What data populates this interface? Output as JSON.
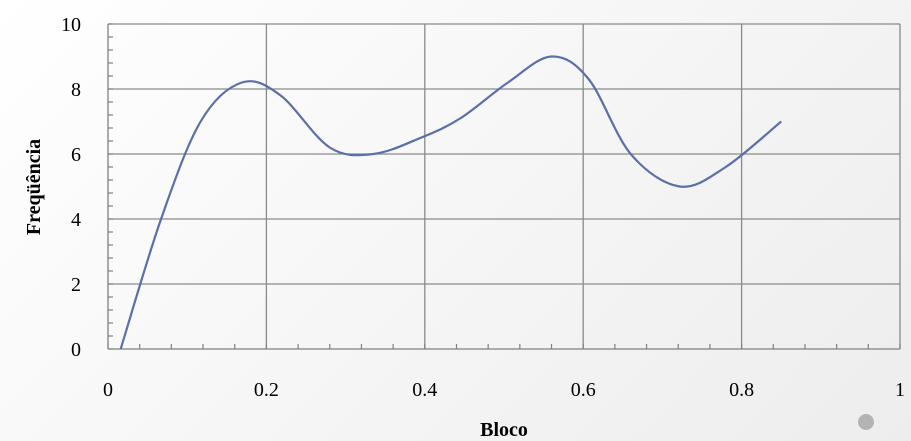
{
  "chart_data": {
    "type": "line",
    "smooth": true,
    "title": "",
    "xlabel": "Bloco",
    "ylabel": "Freqüência",
    "xlim": [
      0,
      1
    ],
    "ylim": [
      0,
      10
    ],
    "x_ticks": [
      0,
      0.2,
      0.4,
      0.6,
      0.8,
      1
    ],
    "x_tick_labels": [
      "0",
      "0.2",
      "0.4",
      "0.6",
      "0.8",
      "1"
    ],
    "y_ticks": [
      0,
      2,
      4,
      6,
      8,
      10
    ],
    "y_tick_labels": [
      "0",
      "2",
      "4",
      "6",
      "8",
      "10"
    ],
    "grid": true,
    "series": [
      {
        "color": "#5b6fa8",
        "x": [
          0.016,
          0.067,
          0.117,
          0.169,
          0.218,
          0.28,
          0.335,
          0.395,
          0.445,
          0.505,
          0.56,
          0.607,
          0.66,
          0.722,
          0.78,
          0.85
        ],
        "y": [
          0,
          4,
          7,
          8.2,
          7.8,
          6.2,
          6.0,
          6.5,
          7.1,
          8.2,
          9.0,
          8.3,
          6.0,
          5.0,
          5.6,
          7.0
        ]
      }
    ]
  },
  "decor": {
    "dot_color": "#b4b4b4"
  }
}
